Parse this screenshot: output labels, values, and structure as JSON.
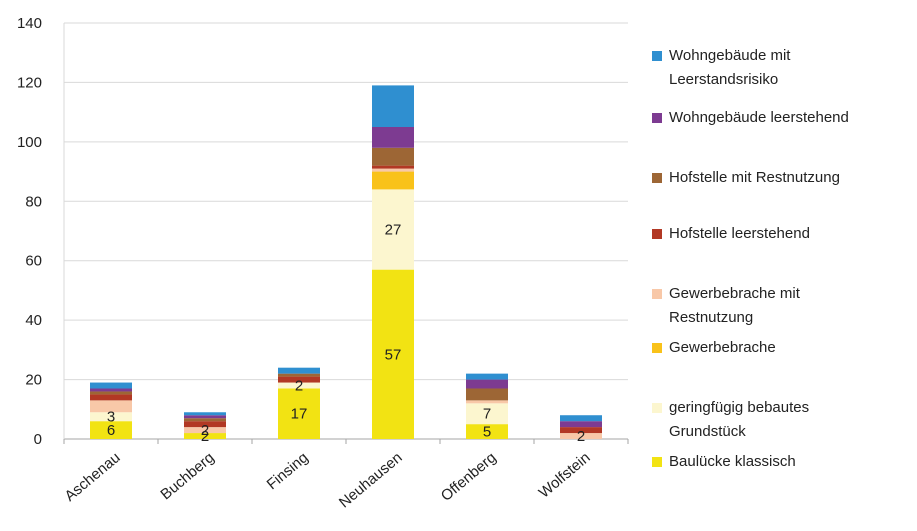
{
  "chart_data": {
    "type": "bar",
    "stacked": true,
    "categories": [
      "Aschenau",
      "Buchberg",
      "Finsing",
      "Neuhausen",
      "Offenberg",
      "Wolfstein"
    ],
    "ylim": [
      0,
      140
    ],
    "yticks": [
      0,
      20,
      40,
      60,
      80,
      100,
      120,
      140
    ],
    "grid": "horizontal",
    "legend_position": "right",
    "series": [
      {
        "name": "Baulücke klassisch",
        "color": "#f2e313",
        "values": [
          6,
          2,
          17,
          57,
          5,
          0
        ],
        "labels": [
          "6",
          "2",
          "17",
          "57",
          "5",
          ""
        ]
      },
      {
        "name": "geringfügig bebautes Grundstück",
        "color": "#fcf6cf",
        "values": [
          3,
          0,
          2,
          27,
          7,
          0
        ],
        "labels": [
          "3",
          "",
          "2",
          "27",
          "7",
          ""
        ]
      },
      {
        "name": "Gewerbebrache",
        "color": "#f9c21a",
        "values": [
          0,
          0,
          0,
          6,
          0,
          0
        ],
        "labels": [
          "",
          "",
          "",
          "",
          "",
          ""
        ]
      },
      {
        "name": "Gewerbebrache mit Restnutzung",
        "color": "#f8c8a8",
        "values": [
          4,
          2,
          0,
          1,
          1,
          2
        ],
        "labels": [
          "",
          "2",
          "",
          "",
          "",
          "2"
        ]
      },
      {
        "name": "Hofstelle leerstehend",
        "color": "#b23824",
        "values": [
          2,
          2,
          2,
          1,
          0,
          2
        ],
        "labels": [
          "",
          "",
          "",
          "",
          "",
          ""
        ]
      },
      {
        "name": "Hofstelle mit Restnutzung",
        "color": "#9d6635",
        "values": [
          1,
          1,
          1,
          6,
          4,
          0
        ],
        "labels": [
          "",
          "",
          "",
          "",
          "",
          ""
        ]
      },
      {
        "name": "Wohngebäude leerstehend",
        "color": "#7d3b91",
        "values": [
          1,
          1,
          0,
          7,
          3,
          2
        ],
        "labels": [
          "",
          "",
          "",
          "",
          "",
          ""
        ]
      },
      {
        "name": "Wohngebäude mit Leerstandsrisiko",
        "color": "#2f8fd0",
        "values": [
          2,
          1,
          2,
          14,
          2,
          2
        ],
        "labels": [
          "",
          "",
          "",
          "",
          "",
          ""
        ]
      }
    ],
    "legend_order": [
      "Wohngebäude mit Leerstandsrisiko",
      "Wohngebäude leerstehend",
      "Hofstelle mit Restnutzung",
      "Hofstelle leerstehend",
      "Gewerbebrache mit Restnutzung",
      "Gewerbebrache",
      "geringfügig bebautes Grundstück",
      "Baulücke klassisch"
    ],
    "legend_lines": {
      "Wohngebäude mit Leerstandsrisiko": [
        "Wohngebäude mit",
        "Leerstandsrisiko"
      ],
      "Wohngebäude leerstehend": [
        "Wohngebäude leerstehend"
      ],
      "Hofstelle mit Restnutzung": [
        "Hofstelle mit Restnutzung"
      ],
      "Hofstelle leerstehend": [
        "Hofstelle leerstehend"
      ],
      "Gewerbebrache mit Restnutzung": [
        "Gewerbebrache mit",
        "Restnutzung"
      ],
      "Gewerbebrache": [
        "Gewerbebrache"
      ],
      "geringfügig bebautes Grundstück": [
        "geringfügig bebautes",
        "Grundstück"
      ],
      "Baulücke klassisch": [
        "Baulücke klassisch"
      ]
    },
    "colors": {
      "gridline": "#d9d9d9",
      "axis": "#a6a6a6",
      "text": "#222222"
    }
  }
}
